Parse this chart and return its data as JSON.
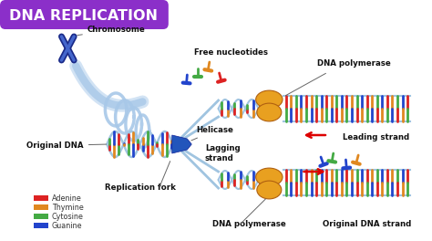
{
  "title": "DNA REPLICATION",
  "title_color": "#ffffff",
  "title_bg_color": "#8B2FC9",
  "bg_color": "#ffffff",
  "labels": {
    "chromosome": "Chromosome",
    "free_nucleotides": "Free nucleotides",
    "dna_polymerase_top": "DNA polymerase",
    "leading_strand": "Leading strand",
    "original_dna": "Original DNA",
    "helicase": "Helicase",
    "lagging_strand": "Lagging\nstrand",
    "replication_fork": "Replication fork",
    "dna_polymerase_bottom": "DNA polymerase",
    "original_dna_strand": "Original DNA strand"
  },
  "legend": [
    {
      "label": "Adenine",
      "color": "#dd2222"
    },
    {
      "label": "Thymine",
      "color": "#e08820"
    },
    {
      "label": "Cytosine",
      "color": "#44aa44"
    },
    {
      "label": "Guanine",
      "color": "#2244cc"
    }
  ],
  "colors": {
    "adenine": "#dd2222",
    "thymine": "#e08820",
    "cytosine": "#44aa44",
    "guanine": "#2244cc",
    "helicase": "#2244cc",
    "polymerase": "#e8a020",
    "backbone": "#a0c4e0",
    "chromosome_dark": "#1a2a88",
    "chromosome_light": "#4466cc"
  }
}
